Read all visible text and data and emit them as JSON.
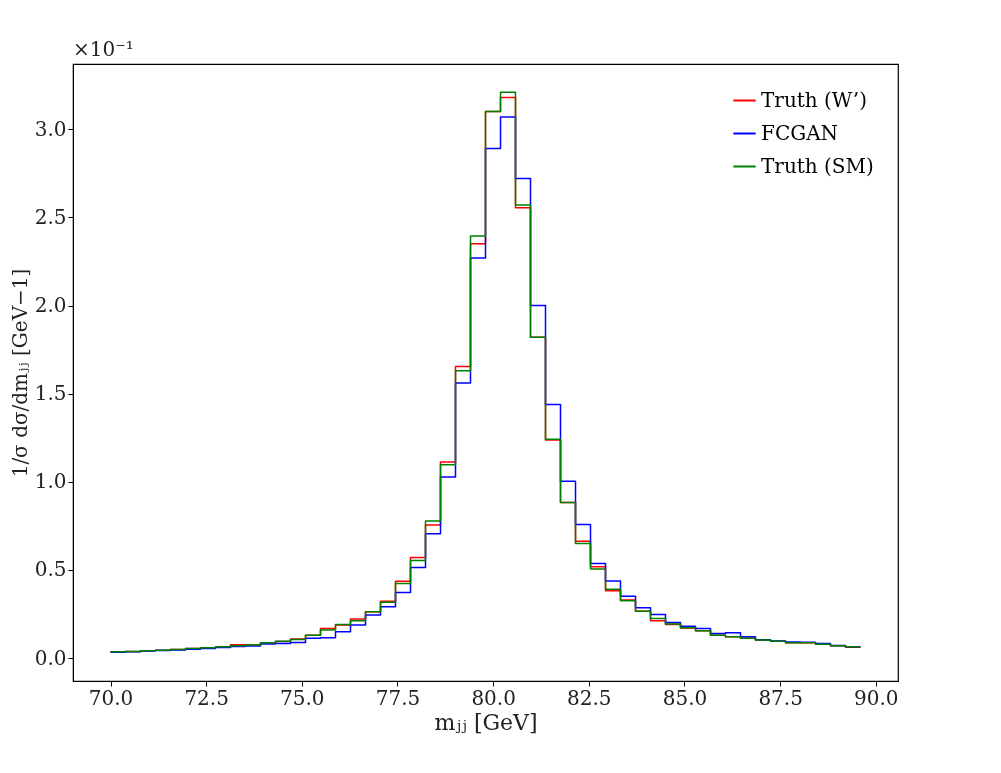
{
  "chart_data": {
    "type": "histogram",
    "xlabel": "mⱼⱼ [GeV]",
    "ylabel": "1/σ dσ/dmⱼⱼ [GeV−1]",
    "annotations": [
      "×10⁻¹"
    ],
    "bins": [
      70.0,
      70.392,
      70.784,
      71.176,
      71.568,
      71.96,
      72.352,
      72.744,
      73.136,
      73.528,
      73.92,
      74.312,
      74.704,
      75.096,
      75.488,
      75.88,
      76.272,
      76.664,
      77.056,
      77.448,
      77.84,
      78.232,
      78.624,
      79.016,
      79.408,
      79.8,
      80.192,
      80.584,
      80.976,
      81.368,
      81.76,
      82.152,
      82.544,
      82.936,
      83.328,
      83.72,
      84.112,
      84.504,
      84.896,
      85.288,
      85.68,
      86.072,
      86.464,
      86.856,
      87.248,
      87.64,
      88.032,
      88.424,
      88.816,
      89.208,
      89.6
    ],
    "series": [
      {
        "name": "Truth (W’)",
        "color": "#ff0000",
        "values": [
          0.036,
          0.038,
          0.042,
          0.045,
          0.049,
          0.055,
          0.059,
          0.064,
          0.076,
          0.074,
          0.087,
          0.094,
          0.108,
          0.13,
          0.168,
          0.188,
          0.221,
          0.263,
          0.323,
          0.436,
          0.57,
          0.755,
          1.113,
          1.654,
          2.35,
          3.1,
          3.18,
          2.555,
          1.82,
          1.237,
          0.883,
          0.663,
          0.518,
          0.382,
          0.33,
          0.266,
          0.212,
          0.19,
          0.17,
          0.155,
          0.13,
          0.121,
          0.112,
          0.102,
          0.096,
          0.087,
          0.087,
          0.079,
          0.07,
          0.062
        ]
      },
      {
        "name": "FCGAN",
        "color": "#0000ff",
        "values": [
          0.033,
          0.036,
          0.04,
          0.043,
          0.046,
          0.05,
          0.055,
          0.06,
          0.066,
          0.068,
          0.08,
          0.083,
          0.089,
          0.112,
          0.115,
          0.149,
          0.187,
          0.244,
          0.291,
          0.372,
          0.514,
          0.705,
          1.027,
          1.56,
          2.27,
          2.89,
          3.07,
          2.72,
          2.0,
          1.438,
          1.003,
          0.758,
          0.537,
          0.437,
          0.351,
          0.285,
          0.247,
          0.202,
          0.181,
          0.168,
          0.14,
          0.144,
          0.121,
          0.104,
          0.097,
          0.091,
          0.09,
          0.083,
          0.072,
          0.064
        ]
      },
      {
        "name": "Truth (SM)",
        "color": "#008000",
        "values": [
          0.036,
          0.038,
          0.042,
          0.045,
          0.049,
          0.055,
          0.059,
          0.064,
          0.07,
          0.074,
          0.087,
          0.096,
          0.106,
          0.13,
          0.159,
          0.191,
          0.212,
          0.263,
          0.317,
          0.423,
          0.553,
          0.777,
          1.096,
          1.63,
          2.395,
          3.1,
          3.21,
          2.57,
          1.82,
          1.241,
          0.883,
          0.65,
          0.505,
          0.391,
          0.325,
          0.266,
          0.225,
          0.193,
          0.172,
          0.155,
          0.13,
          0.121,
          0.112,
          0.102,
          0.096,
          0.087,
          0.087,
          0.079,
          0.07,
          0.064
        ]
      }
    ],
    "xlim": [
      69.02,
      90.58
    ],
    "ylim": [
      -0.13,
      3.37
    ],
    "xticks": [
      {
        "value": 70,
        "label": "70.0"
      },
      72.5,
      {
        "value": 75,
        "label": "75.0"
      },
      77.5,
      {
        "value": 80,
        "label": "80.0"
      },
      82.5,
      {
        "value": 85,
        "label": "85.0"
      },
      87.5,
      {
        "value": 90,
        "label": "90.0"
      }
    ],
    "yticks": [
      {
        "value": 0,
        "label": "0.0"
      },
      0.5,
      {
        "value": 1,
        "label": "1.0"
      },
      1.5,
      {
        "value": 2,
        "label": "2.0"
      },
      2.5,
      {
        "value": 3,
        "label": "3.0"
      }
    ],
    "legend": "top right",
    "grid": false,
    "line_style": "solid"
  }
}
